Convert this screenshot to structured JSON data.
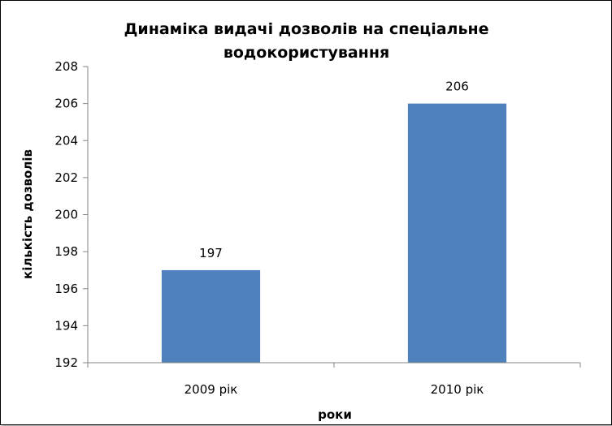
{
  "chart_data": {
    "type": "bar",
    "title_lines": [
      "Динаміка видачі дозволів на спеціальне",
      "водокористування"
    ],
    "categories": [
      "2009 рік",
      "2010 рік"
    ],
    "values": [
      197,
      206
    ],
    "data_labels": [
      "197",
      "206"
    ],
    "xlabel": "роки",
    "ylabel": "кількість дозволів",
    "ylim": [
      192,
      208
    ],
    "yticks": [
      "192",
      "194",
      "196",
      "198",
      "200",
      "202",
      "204",
      "206",
      "208"
    ],
    "grid": false,
    "legend": "none",
    "bar_color": "#4F81BD"
  }
}
